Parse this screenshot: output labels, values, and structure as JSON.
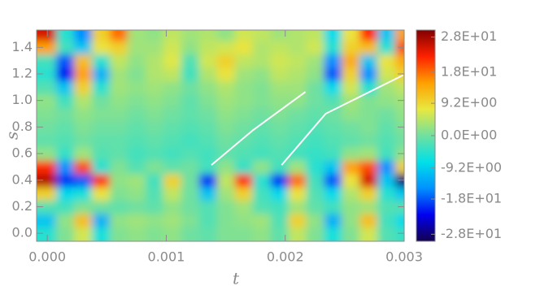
{
  "chart_data": {
    "type": "heatmap",
    "xlabel": "t",
    "ylabel": "s",
    "x": [
      0,
      0.00015,
      0.0003,
      0.00045,
      0.0006,
      0.00075,
      0.0009,
      0.00105,
      0.0012,
      0.00135,
      0.0015,
      0.00165,
      0.0018,
      0.00195,
      0.0021,
      0.00225,
      0.0024,
      0.00255,
      0.0027,
      0.00285,
      0.003
    ],
    "y": [
      0,
      0.1,
      0.2,
      0.3,
      0.4,
      0.5,
      0.6,
      0.7,
      0.8,
      0.9,
      1.0,
      1.1,
      1.2,
      1.3,
      1.4,
      1.5
    ],
    "z": [
      [
        -5,
        1,
        6,
        -6,
        1,
        2,
        1,
        2,
        0,
        -1,
        1,
        1,
        2,
        -1,
        5,
        1,
        -6,
        1,
        6,
        -2,
        -4
      ],
      [
        -10,
        2,
        12,
        -12,
        2,
        3,
        2,
        3,
        1,
        -2,
        1,
        2,
        3,
        -2,
        10,
        2,
        -12,
        2,
        12,
        -3,
        -8
      ],
      [
        -2,
        -3,
        1,
        0,
        -1,
        0,
        -1,
        2,
        0,
        -2,
        1,
        3,
        -2,
        -3,
        3,
        -1,
        -3,
        2,
        3,
        -2,
        -2
      ],
      [
        10,
        -8,
        -6,
        8,
        1,
        2,
        -2,
        5,
        0,
        -10,
        3,
        10,
        -3,
        -8,
        8,
        -2,
        -8,
        4,
        10,
        -5,
        -10
      ],
      [
        27,
        -20,
        -18,
        22,
        2,
        3,
        -3,
        10,
        0,
        -20,
        5,
        22,
        -5,
        -20,
        18,
        -3,
        -18,
        8,
        25,
        -10,
        -28
      ],
      [
        22,
        -15,
        20,
        -5,
        1,
        -2,
        1,
        -1,
        0,
        -3,
        2,
        -4,
        2,
        -3,
        3,
        -5,
        -10,
        15,
        20,
        -15,
        10
      ],
      [
        2,
        -4,
        3,
        -2,
        -1,
        -3,
        -2,
        -3,
        -2,
        -3,
        -1,
        -2,
        -3,
        -2,
        -3,
        -4,
        -3,
        2,
        3,
        -3,
        2
      ],
      [
        -1,
        -2,
        0,
        -1,
        -1,
        -2,
        -1,
        -2,
        -3,
        -2,
        0,
        -1,
        -2,
        -1,
        -2,
        -3,
        -2,
        -1,
        0,
        -2,
        0
      ],
      [
        0,
        -1,
        1,
        0,
        0,
        -1,
        0,
        -1,
        -2,
        -1,
        1,
        0,
        -1,
        0,
        -1,
        -2,
        -1,
        0,
        1,
        -1,
        1
      ],
      [
        1,
        0,
        2,
        1,
        1,
        0,
        1,
        0,
        -1,
        0,
        2,
        1,
        0,
        1,
        0,
        -1,
        0,
        2,
        1,
        0,
        2
      ],
      [
        2,
        -3,
        4,
        0,
        2,
        1,
        2,
        1,
        -1,
        1,
        3,
        2,
        1,
        2,
        2,
        0,
        -2,
        3,
        1,
        2,
        3
      ],
      [
        -2,
        -10,
        10,
        -5,
        3,
        2,
        3,
        2,
        0,
        2,
        4,
        2,
        1,
        3,
        3,
        0,
        -8,
        6,
        -5,
        3,
        5
      ],
      [
        -5,
        -22,
        15,
        -12,
        3,
        1,
        4,
        5,
        -3,
        4,
        8,
        3,
        2,
        5,
        4,
        2,
        -18,
        10,
        -15,
        6,
        10
      ],
      [
        -3,
        -18,
        12,
        -5,
        5,
        2,
        4,
        7,
        -2,
        6,
        10,
        5,
        4,
        6,
        5,
        3,
        -15,
        14,
        -10,
        8,
        14
      ],
      [
        15,
        -3,
        -10,
        8,
        10,
        3,
        3,
        6,
        2,
        5,
        6,
        8,
        4,
        5,
        4,
        6,
        -5,
        10,
        12,
        -5,
        20
      ],
      [
        25,
        -5,
        -15,
        10,
        18,
        3,
        2,
        5,
        3,
        4,
        2,
        6,
        5,
        3,
        4,
        5,
        -8,
        8,
        22,
        -10,
        15
      ]
    ],
    "xlim": [
      -9e-05,
      0.003
    ],
    "ylim": [
      -0.06,
      1.53
    ],
    "xticks": [
      {
        "value": 0,
        "label": "0.000"
      },
      0.001,
      0.002,
      0.003
    ],
    "yticks": [
      {
        "value": 0,
        "label": "0.0"
      },
      0.2,
      0.4,
      0.6,
      0.8,
      {
        "value": 1,
        "label": "1.0"
      },
      1.2,
      1.4
    ],
    "zlim": [
      -30,
      30
    ],
    "colorbar_ticks": [
      {
        "value": 28,
        "label": "2.8E+01"
      },
      {
        "value": 18,
        "label": "1.8E+01"
      },
      {
        "value": 9.2,
        "label": "9.2E+00"
      },
      {
        "value": 0,
        "label": "0.0E+00"
      },
      {
        "value": -9.2,
        "label": "-9.2E+00"
      },
      {
        "value": -18,
        "label": "-1.8E+01"
      },
      {
        "value": -28,
        "label": "-2.8E+01"
      }
    ],
    "colormap": [
      "#14004f",
      "#0000f0",
      "#0090ff",
      "#00e0e8",
      "#70e0a0",
      "#e8e840",
      "#ffa000",
      "#ff2000",
      "#800000"
    ],
    "lines": [
      {
        "color": "#ffffff",
        "x": [
          0.00138,
          0.00173,
          0.00217
        ],
        "y": [
          0.514,
          0.777,
          1.065
        ]
      },
      {
        "color": "#ffffff",
        "x": [
          0.00197,
          0.00234,
          0.00299
        ],
        "y": [
          0.514,
          0.9,
          1.19
        ]
      }
    ]
  }
}
